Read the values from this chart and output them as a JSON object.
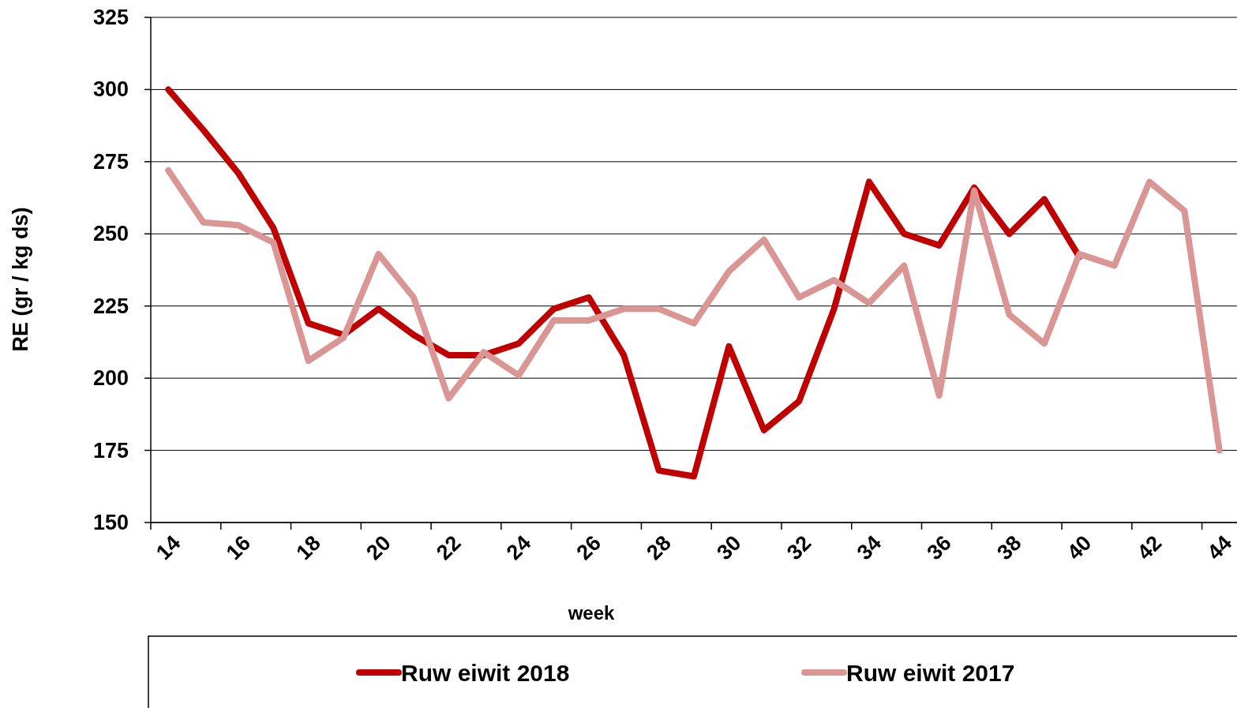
{
  "chart_data": {
    "type": "line",
    "xlabel": "week",
    "ylabel": "RE (gr / kg ds)",
    "categories": [
      "14",
      null,
      "16",
      null,
      "18",
      null,
      "20",
      null,
      "22",
      null,
      "24",
      null,
      "26",
      null,
      "28",
      null,
      "30",
      null,
      "32",
      null,
      "34",
      null,
      "36",
      null,
      "38",
      null,
      "40",
      null,
      "42",
      null,
      "44"
    ],
    "series": [
      {
        "name": "Ruw eiwit 2018",
        "color": "#c00000",
        "values": [
          300,
          286,
          271,
          252,
          219,
          215,
          224,
          215,
          208,
          208,
          212,
          224,
          228,
          208,
          168,
          166,
          211,
          182,
          192,
          224,
          268,
          250,
          246,
          266,
          250,
          262,
          242,
          null,
          null,
          null,
          null
        ]
      },
      {
        "name": "Ruw eiwit 2017",
        "color": "#d99694",
        "values": [
          272,
          254,
          253,
          247,
          206,
          214,
          243,
          228,
          193,
          209,
          201,
          220,
          220,
          224,
          224,
          219,
          237,
          248,
          228,
          234,
          226,
          239,
          194,
          265,
          222,
          212,
          243,
          239,
          268,
          258,
          175
        ]
      }
    ],
    "ylim": [
      150,
      325
    ],
    "yticks": [
      150,
      175,
      200,
      225,
      250,
      275,
      300,
      325
    ],
    "grid": "y",
    "legend": "bottom",
    "marker": "none",
    "line_style": "solid"
  }
}
